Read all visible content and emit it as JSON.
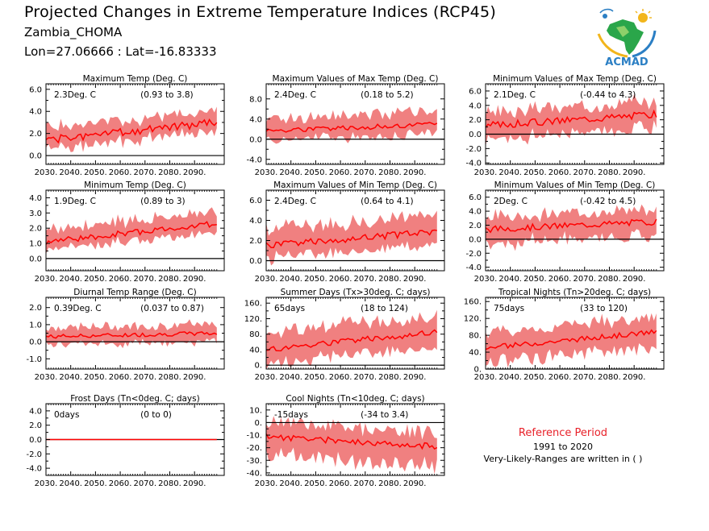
{
  "header": {
    "title": "Projected Changes in Extreme Temperature Indices (RCP45)",
    "station": "Zambia_CHOMA",
    "coords": "Lon=27.06666 : Lat=-16.83333"
  },
  "logo": {
    "text": "ACMAD"
  },
  "reference": {
    "title": "Reference Period",
    "period": "1991 to 2020",
    "note": "Very-Likely-Ranges are written in ( )"
  },
  "colors": {
    "band": "#f08080",
    "line": "#ff0000",
    "zero": "#000000"
  },
  "chart_data": [
    {
      "type": "area",
      "title": "Maximum Temp (Deg. C)",
      "mean_label": "2.3Deg. C",
      "range_label": "(0.93 to 3.8)",
      "x_start": 2030,
      "x_end": 2099,
      "ylim": [
        -0.8,
        6.5
      ],
      "yticks": [
        0,
        2,
        4,
        6
      ],
      "ytick_labels": [
        "0.0",
        "2.0",
        "4.0",
        "6.0"
      ],
      "xtick_labels": [
        "2030.",
        "2040.",
        "2050.",
        "2060.",
        "2070.",
        "2080.",
        "2090."
      ],
      "mean_start": 1.4,
      "mean_end": 3.0,
      "band_low": 0.8,
      "band_high": 1.0,
      "noise": 0.35,
      "seed": 1
    },
    {
      "type": "area",
      "title": "Maximum Values of Max Temp (Deg. C)",
      "mean_label": "2.4Deg. C",
      "range_label": "(0.18 to 5.2)",
      "x_start": 2030,
      "x_end": 2099,
      "ylim": [
        -5,
        11
      ],
      "yticks": [
        -4,
        0,
        4,
        8
      ],
      "ytick_labels": [
        "-4.0",
        "0.0",
        "4.0",
        "8.0"
      ],
      "xtick_labels": [
        "2030.",
        "2040.",
        "2050.",
        "2060.",
        "2070.",
        "2080.",
        "2090."
      ],
      "mean_start": 1.7,
      "mean_end": 2.9,
      "band_low": 1.8,
      "band_high": 2.4,
      "noise": 0.5,
      "seed": 2
    },
    {
      "type": "area",
      "title": "Minimum Values of Max Temp (Deg. C)",
      "mean_label": "2.1Deg. C",
      "range_label": "(-0.44 to 4.3)",
      "x_start": 2030,
      "x_end": 2099,
      "ylim": [
        -4.2,
        7
      ],
      "yticks": [
        -4,
        -2,
        0,
        2,
        4,
        6
      ],
      "ytick_labels": [
        "-4.0",
        "-2.0",
        "0.0",
        "2.0",
        "4.0",
        "6.0"
      ],
      "xtick_labels": [
        "2030.",
        "2040.",
        "2050.",
        "2060.",
        "2070.",
        "2080.",
        "2090."
      ],
      "mean_start": 1.2,
      "mean_end": 2.8,
      "band_low": 1.8,
      "band_high": 1.7,
      "noise": 0.5,
      "seed": 3
    },
    {
      "type": "area",
      "title": "Minimum Temp (Deg. C)",
      "mean_label": "1.9Deg. C",
      "range_label": "(0.89 to 3)",
      "x_start": 2030,
      "x_end": 2099,
      "ylim": [
        -0.8,
        4.5
      ],
      "yticks": [
        0,
        1,
        2,
        3,
        4
      ],
      "ytick_labels": [
        "0.0",
        "1.0",
        "2.0",
        "3.0",
        "4.0"
      ],
      "xtick_labels": [
        "2030.",
        "2040.",
        "2050.",
        "2060.",
        "2070.",
        "2080.",
        "2090."
      ],
      "mean_start": 1.1,
      "mean_end": 2.3,
      "band_low": 0.5,
      "band_high": 0.8,
      "noise": 0.2,
      "seed": 4
    },
    {
      "type": "area",
      "title": "Maximum Values of Min Temp (Deg. C)",
      "mean_label": "2.4Deg. C",
      "range_label": "(0.64 to 4.1)",
      "x_start": 2030,
      "x_end": 2099,
      "ylim": [
        -1,
        7
      ],
      "yticks": [
        0,
        2,
        4,
        6
      ],
      "ytick_labels": [
        "0.0",
        "2.0",
        "4.0",
        "6.0"
      ],
      "xtick_labels": [
        "2030.",
        "2040.",
        "2050.",
        "2060.",
        "2070.",
        "2080.",
        "2090."
      ],
      "mean_start": 1.5,
      "mean_end": 2.9,
      "band_low": 1.2,
      "band_high": 1.5,
      "noise": 0.35,
      "seed": 5
    },
    {
      "type": "area",
      "title": "Minimum Values of Min Temp (Deg. C)",
      "mean_label": "2Deg. C",
      "range_label": "(-0.42 to 4.5)",
      "x_start": 2030,
      "x_end": 2099,
      "ylim": [
        -4.5,
        7
      ],
      "yticks": [
        -4,
        -2,
        0,
        2,
        4,
        6
      ],
      "ytick_labels": [
        "-4.0",
        "-2.0",
        "0.0",
        "2.0",
        "4.0",
        "6.0"
      ],
      "xtick_labels": [
        "2030.",
        "2040.",
        "2050.",
        "2060.",
        "2070.",
        "2080.",
        "2090."
      ],
      "mean_start": 1.4,
      "mean_end": 2.5,
      "band_low": 1.9,
      "band_high": 1.7,
      "noise": 0.45,
      "seed": 6
    },
    {
      "type": "area",
      "title": "Diurnal Temp Range (Deg. C)",
      "mean_label": "0.39Deg. C",
      "range_label": "(0.037 to 0.87)",
      "x_start": 2030,
      "x_end": 2099,
      "ylim": [
        -1.6,
        2.6
      ],
      "yticks": [
        -1,
        0,
        1,
        2
      ],
      "ytick_labels": [
        "-1.0",
        "0.0",
        "1.0",
        "2.0"
      ],
      "xtick_labels": [
        "2030.",
        "2040.",
        "2050.",
        "2060.",
        "2070.",
        "2080.",
        "2090."
      ],
      "mean_start": 0.3,
      "mean_end": 0.5,
      "band_low": 0.45,
      "band_high": 0.5,
      "noise": 0.12,
      "seed": 7
    },
    {
      "type": "area",
      "title": "Summer Days (Tx>30deg. C; days)",
      "mean_label": "65days",
      "range_label": "(18 to 124)",
      "x_start": 2030,
      "x_end": 2099,
      "ylim": [
        -10,
        175
      ],
      "yticks": [
        0,
        40,
        80,
        120,
        160
      ],
      "ytick_labels": [
        "0.",
        "40.",
        "80.",
        "120.",
        "160."
      ],
      "xtick_labels": [
        "2030.",
        "2040.",
        "2050.",
        "2060.",
        "2070.",
        "2080.",
        "2090."
      ],
      "mean_start": 40,
      "mean_end": 85,
      "band_low": 35,
      "band_high": 40,
      "noise": 8,
      "seed": 8
    },
    {
      "type": "area",
      "title": "Tropical Nights (Tn>20deg. C; days)",
      "mean_label": "75days",
      "range_label": "(33 to 120)",
      "x_start": 2030,
      "x_end": 2099,
      "ylim": [
        0,
        170
      ],
      "yticks": [
        0,
        40,
        80,
        120,
        160
      ],
      "ytick_labels": [
        "0.",
        "40.",
        "80.",
        "120.",
        "160."
      ],
      "xtick_labels": [
        "2030.",
        "2040.",
        "2050.",
        "2060.",
        "2070.",
        "2080.",
        "2090."
      ],
      "mean_start": 50,
      "mean_end": 88,
      "band_low": 32,
      "band_high": 34,
      "noise": 6,
      "seed": 9
    },
    {
      "type": "area",
      "title": "Frost Days (Tn<0deg. C; days)",
      "mean_label": "0days",
      "range_label": "(0 to 0)",
      "x_start": 2030,
      "x_end": 2099,
      "ylim": [
        -5,
        5
      ],
      "yticks": [
        -4,
        -2,
        0,
        2,
        4
      ],
      "ytick_labels": [
        "-4.0",
        "-2.0",
        "0.0",
        "2.0",
        "4.0"
      ],
      "xtick_labels": [
        "2030.",
        "2040.",
        "2050.",
        "2060.",
        "2070.",
        "2080.",
        "2090."
      ],
      "mean_start": 0,
      "mean_end": 0,
      "band_low": 0,
      "band_high": 0,
      "noise": 0,
      "seed": 10
    },
    {
      "type": "area",
      "title": "Cool Nights (Tn<10deg. C; days)",
      "mean_label": "-15days",
      "range_label": "(-34 to 3.4)",
      "x_start": 2030,
      "x_end": 2099,
      "ylim": [
        -42,
        15
      ],
      "yticks": [
        -40,
        -30,
        -20,
        -10,
        0,
        10
      ],
      "ytick_labels": [
        "-40.",
        "-30.",
        "-20.",
        "-10.",
        "0.",
        "10."
      ],
      "xtick_labels": [
        "2030.",
        "2040.",
        "2050.",
        "2060.",
        "2070.",
        "2080.",
        "2090."
      ],
      "mean_start": -11,
      "mean_end": -19,
      "band_low": 14,
      "band_high": 11,
      "noise": 2.5,
      "seed": 11
    }
  ]
}
